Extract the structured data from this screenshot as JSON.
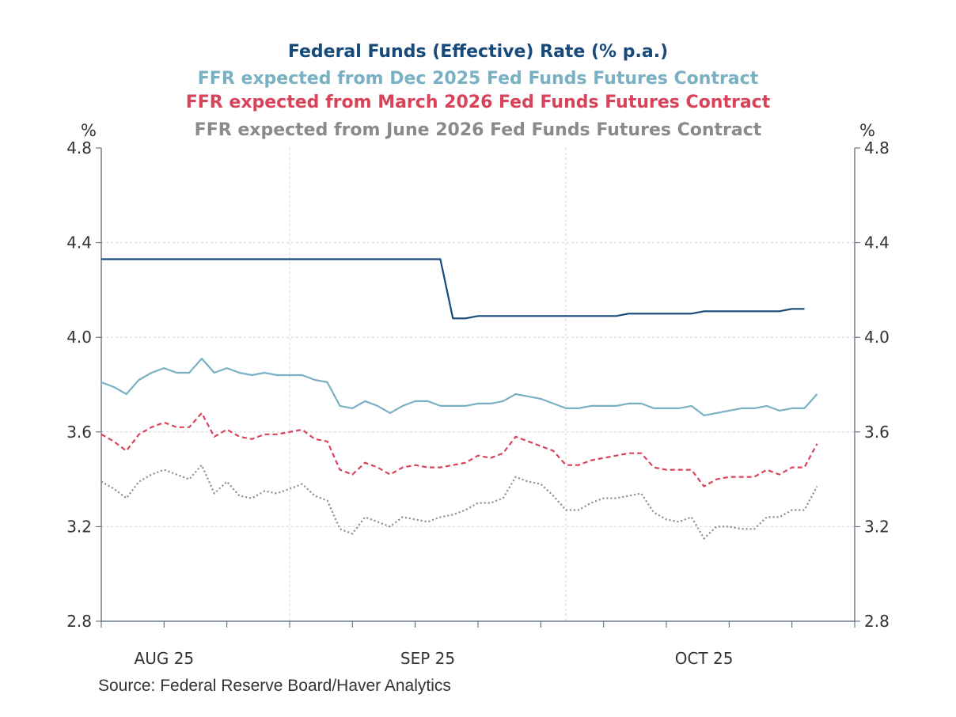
{
  "chart_data": {
    "type": "line",
    "titles": [
      {
        "text": "Federal Funds (Effective) Rate (% p.a.)",
        "color": "#17497a"
      },
      {
        "text": "FFR expected from Dec 2025 Fed Funds Futures Contract",
        "color": "#79b0c3"
      },
      {
        "text": "FFR expected from March 2026 Fed Funds Futures Contract",
        "color": "#d9435a"
      },
      {
        "text": "FFR expected from June 2026 Fed Funds Futures Contract",
        "color": "#8a8a8e"
      }
    ],
    "ylabel_left": "%",
    "ylabel_right": "%",
    "ylim": [
      2.8,
      4.8
    ],
    "yticks": [
      "2.8",
      "3.2",
      "3.6",
      "4.0",
      "4.4",
      "4.8"
    ],
    "xlim": [
      "2025-08-11",
      "2025-11-03"
    ],
    "x_axis_frequency": "weekdays",
    "xtick_labels": [
      "AUG 25",
      "SEP 25",
      "OCT 25"
    ],
    "grid": true,
    "source": "Source:  Federal Reserve Board/Haver Analytics",
    "x": [
      "2025-08-11",
      "2025-08-12",
      "2025-08-13",
      "2025-08-14",
      "2025-08-15",
      "2025-08-18",
      "2025-08-19",
      "2025-08-20",
      "2025-08-21",
      "2025-08-22",
      "2025-08-25",
      "2025-08-26",
      "2025-08-27",
      "2025-08-28",
      "2025-08-29",
      "2025-09-01",
      "2025-09-02",
      "2025-09-03",
      "2025-09-04",
      "2025-09-05",
      "2025-09-08",
      "2025-09-09",
      "2025-09-10",
      "2025-09-11",
      "2025-09-12",
      "2025-09-15",
      "2025-09-16",
      "2025-09-17",
      "2025-09-18",
      "2025-09-19",
      "2025-09-22",
      "2025-09-23",
      "2025-09-24",
      "2025-09-25",
      "2025-09-26",
      "2025-09-29",
      "2025-09-30",
      "2025-10-01",
      "2025-10-02",
      "2025-10-03",
      "2025-10-06",
      "2025-10-07",
      "2025-10-08",
      "2025-10-09",
      "2025-10-10",
      "2025-10-13",
      "2025-10-14",
      "2025-10-15",
      "2025-10-16",
      "2025-10-17",
      "2025-10-20",
      "2025-10-21",
      "2025-10-22",
      "2025-10-23",
      "2025-10-24",
      "2025-10-27",
      "2025-10-28",
      "2025-10-29"
    ],
    "series": [
      {
        "name": "Federal Funds (Effective) Rate (% p.a.)",
        "color": "#17497a",
        "style": "solid",
        "values": [
          4.33,
          4.33,
          4.33,
          4.33,
          4.33,
          4.33,
          4.33,
          4.33,
          4.33,
          4.33,
          4.33,
          4.33,
          4.33,
          4.33,
          4.33,
          4.33,
          4.33,
          4.33,
          4.33,
          4.33,
          4.33,
          4.33,
          4.33,
          4.33,
          4.33,
          4.33,
          4.33,
          4.33,
          4.08,
          4.08,
          4.09,
          4.09,
          4.09,
          4.09,
          4.09,
          4.09,
          4.09,
          4.09,
          4.09,
          4.09,
          4.09,
          4.09,
          4.1,
          4.1,
          4.1,
          4.1,
          4.1,
          4.1,
          4.11,
          4.11,
          4.11,
          4.11,
          4.11,
          4.11,
          4.11,
          4.12,
          4.12,
          null
        ]
      },
      {
        "name": "FFR expected from Dec 2025 Fed Funds Futures Contract",
        "color": "#79b0c3",
        "style": "solid",
        "values": [
          3.81,
          3.79,
          3.76,
          3.82,
          3.85,
          3.87,
          3.85,
          3.85,
          3.91,
          3.85,
          3.87,
          3.85,
          3.84,
          3.85,
          3.84,
          3.84,
          3.84,
          3.82,
          3.81,
          3.71,
          3.7,
          3.73,
          3.71,
          3.68,
          3.71,
          3.73,
          3.73,
          3.71,
          3.71,
          3.71,
          3.72,
          3.72,
          3.73,
          3.76,
          3.75,
          3.74,
          3.72,
          3.7,
          3.7,
          3.71,
          3.71,
          3.71,
          3.72,
          3.72,
          3.7,
          3.7,
          3.7,
          3.71,
          3.67,
          3.68,
          3.69,
          3.7,
          3.7,
          3.71,
          3.69,
          3.7,
          3.7,
          3.76
        ]
      },
      {
        "name": "FFR expected from March 2026 Fed Funds Futures Contract",
        "color": "#d9435a",
        "style": "dashed",
        "values": [
          3.59,
          3.56,
          3.52,
          3.59,
          3.62,
          3.64,
          3.62,
          3.62,
          3.68,
          3.58,
          3.61,
          3.58,
          3.57,
          3.59,
          3.59,
          3.6,
          3.61,
          3.57,
          3.56,
          3.44,
          3.42,
          3.47,
          3.45,
          3.42,
          3.45,
          3.46,
          3.45,
          3.45,
          3.46,
          3.47,
          3.5,
          3.49,
          3.51,
          3.58,
          3.56,
          3.54,
          3.52,
          3.46,
          3.46,
          3.48,
          3.49,
          3.5,
          3.51,
          3.51,
          3.45,
          3.44,
          3.44,
          3.44,
          3.37,
          3.4,
          3.41,
          3.41,
          3.41,
          3.44,
          3.42,
          3.45,
          3.45,
          3.55
        ]
      },
      {
        "name": "FFR expected from June 2026 Fed Funds Futures Contract",
        "color": "#8a8a8e",
        "style": "dotted",
        "values": [
          3.39,
          3.36,
          3.32,
          3.39,
          3.42,
          3.44,
          3.42,
          3.4,
          3.46,
          3.34,
          3.39,
          3.33,
          3.32,
          3.35,
          3.34,
          3.36,
          3.38,
          3.33,
          3.31,
          3.19,
          3.17,
          3.24,
          3.22,
          3.2,
          3.24,
          3.23,
          3.22,
          3.24,
          3.25,
          3.27,
          3.3,
          3.3,
          3.32,
          3.41,
          3.39,
          3.38,
          3.33,
          3.27,
          3.27,
          3.3,
          3.32,
          3.32,
          3.33,
          3.34,
          3.26,
          3.23,
          3.22,
          3.24,
          3.15,
          3.2,
          3.2,
          3.19,
          3.19,
          3.24,
          3.24,
          3.27,
          3.27,
          3.37
        ]
      }
    ]
  }
}
